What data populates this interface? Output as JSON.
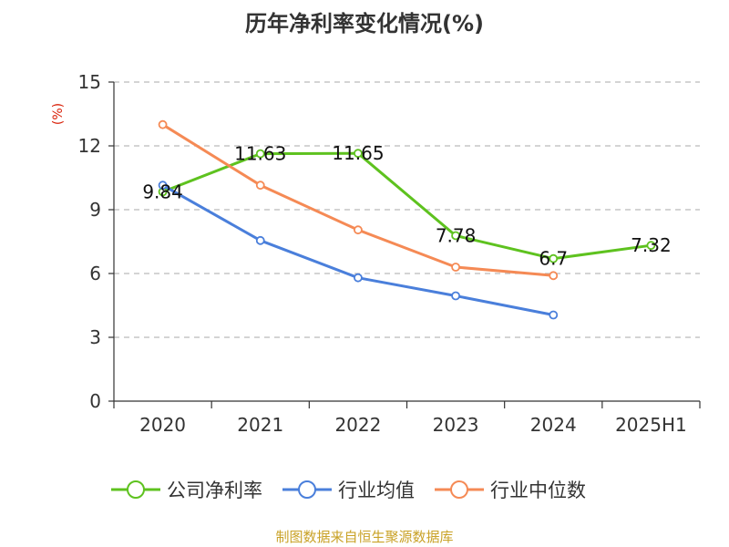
{
  "chart_data": {
    "type": "line",
    "title": "历年净利率变化情况(%)",
    "ylabel": "(%)",
    "xlabel": "",
    "categories": [
      "2020",
      "2021",
      "2022",
      "2023",
      "2024",
      "2025H1"
    ],
    "ylim": [
      0,
      15
    ],
    "yticks": [
      0,
      3,
      6,
      9,
      12,
      15
    ],
    "grid": true,
    "legend_position": "bottom",
    "series": [
      {
        "name": "公司净利率",
        "color": "#5ec21f",
        "values": [
          9.84,
          11.63,
          11.65,
          7.78,
          6.7,
          7.32
        ],
        "labels": [
          "9.84",
          "11.63",
          "11.65",
          "7.78",
          "6.7",
          "7.32"
        ]
      },
      {
        "name": "行业均值",
        "color": "#4a7fdb",
        "values": [
          10.15,
          7.55,
          5.8,
          4.95,
          4.05,
          null
        ]
      },
      {
        "name": "行业中位数",
        "color": "#f58a55",
        "values": [
          13.0,
          10.15,
          8.05,
          6.3,
          5.9,
          null
        ]
      }
    ]
  },
  "footer": {
    "source": "制图数据来自恒生聚源数据库",
    "source_color": "#c9a227"
  },
  "styles": {
    "ylabel_color": "#d81e06"
  }
}
